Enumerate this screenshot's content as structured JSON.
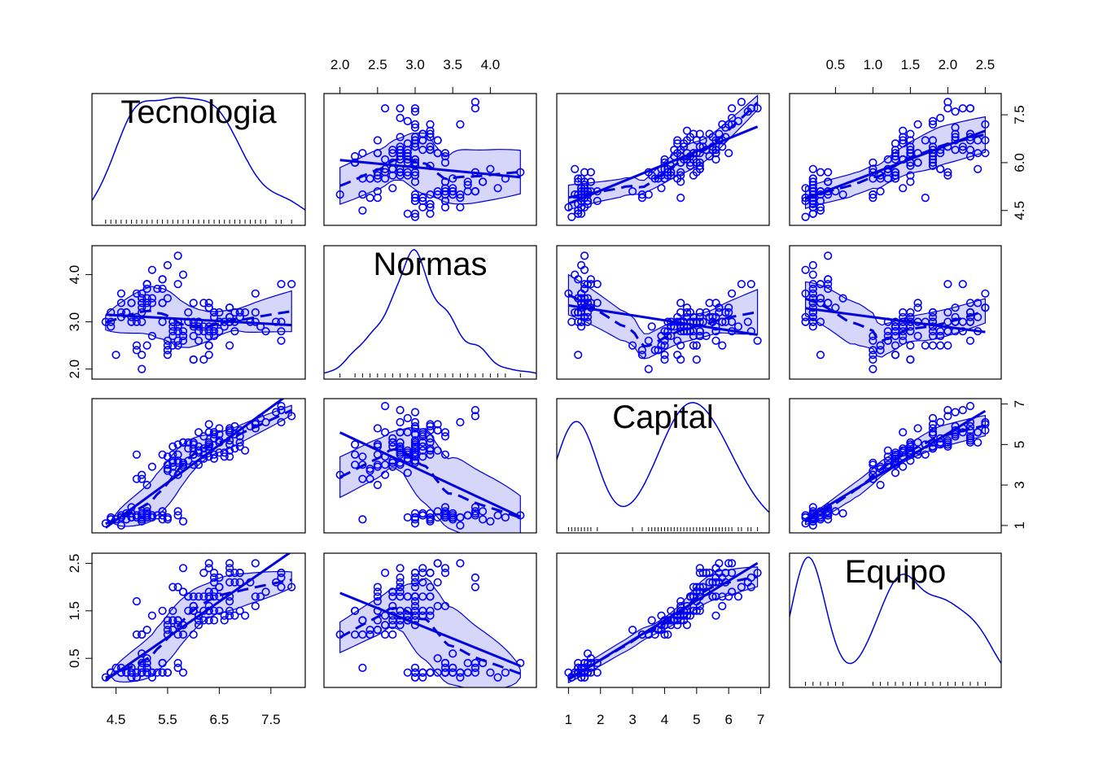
{
  "chart_data": {
    "type": "scatter",
    "variables": [
      "Tecnologia",
      "Normas",
      "Capital",
      "Equipo"
    ],
    "axis_ticks": {
      "Tecnologia": [
        "4.5",
        "5.5",
        "6.5",
        "7.5"
      ],
      "Tecnologia_right": [
        "4.5",
        "6.0",
        "7.5"
      ],
      "Normas": [
        "2.0",
        "2.5",
        "3.0",
        "3.5",
        "4.0"
      ],
      "Normas_left": [
        "2.0",
        "3.0",
        "4.0"
      ],
      "Capital": [
        "1",
        "2",
        "3",
        "4",
        "5",
        "6",
        "7"
      ],
      "Capital_right": [
        "1",
        "3",
        "5",
        "7"
      ],
      "Equipo": [
        "0.5",
        "1.0",
        "1.5",
        "2.0",
        "2.5"
      ],
      "Equipo_left": [
        "0.5",
        "1.5",
        "2.5"
      ]
    },
    "ranges": {
      "Tecnologia": [
        4.2,
        8.0
      ],
      "Normas": [
        1.9,
        4.5
      ],
      "Capital": [
        0.9,
        7.0
      ],
      "Equipo": [
        0.0,
        2.6
      ]
    },
    "colors": {
      "points": "#0000ff",
      "lines": "#0000dd",
      "band": "#d6d6fa"
    },
    "points": [
      [
        5.1,
        3.5,
        1.4,
        0.2
      ],
      [
        4.9,
        3.0,
        1.4,
        0.2
      ],
      [
        4.7,
        3.2,
        1.3,
        0.2
      ],
      [
        4.6,
        3.1,
        1.5,
        0.2
      ],
      [
        5.0,
        3.6,
        1.4,
        0.2
      ],
      [
        5.4,
        3.9,
        1.7,
        0.4
      ],
      [
        4.6,
        3.4,
        1.4,
        0.3
      ],
      [
        5.0,
        3.4,
        1.5,
        0.2
      ],
      [
        4.4,
        2.9,
        1.4,
        0.2
      ],
      [
        4.9,
        3.1,
        1.5,
        0.1
      ],
      [
        5.4,
        3.7,
        1.5,
        0.2
      ],
      [
        4.8,
        3.4,
        1.6,
        0.2
      ],
      [
        4.8,
        3.0,
        1.4,
        0.1
      ],
      [
        4.3,
        3.0,
        1.1,
        0.1
      ],
      [
        5.8,
        4.0,
        1.2,
        0.2
      ],
      [
        5.7,
        4.4,
        1.5,
        0.4
      ],
      [
        5.4,
        3.9,
        1.3,
        0.4
      ],
      [
        5.1,
        3.5,
        1.4,
        0.3
      ],
      [
        5.7,
        3.8,
        1.7,
        0.3
      ],
      [
        5.1,
        3.8,
        1.5,
        0.3
      ],
      [
        5.4,
        3.4,
        1.7,
        0.2
      ],
      [
        5.1,
        3.7,
        1.5,
        0.4
      ],
      [
        4.6,
        3.6,
        1.0,
        0.2
      ],
      [
        5.1,
        3.3,
        1.7,
        0.5
      ],
      [
        4.8,
        3.4,
        1.9,
        0.2
      ],
      [
        5.0,
        3.0,
        1.6,
        0.2
      ],
      [
        5.0,
        3.4,
        1.6,
        0.4
      ],
      [
        5.2,
        3.5,
        1.5,
        0.2
      ],
      [
        5.2,
        3.4,
        1.4,
        0.2
      ],
      [
        4.7,
        3.2,
        1.6,
        0.2
      ],
      [
        4.8,
        3.1,
        1.6,
        0.2
      ],
      [
        5.4,
        3.4,
        1.5,
        0.4
      ],
      [
        5.2,
        4.1,
        1.5,
        0.1
      ],
      [
        5.5,
        4.2,
        1.4,
        0.2
      ],
      [
        4.9,
        3.1,
        1.5,
        0.2
      ],
      [
        5.0,
        3.2,
        1.2,
        0.2
      ],
      [
        5.5,
        3.5,
        1.3,
        0.2
      ],
      [
        4.9,
        3.6,
        1.4,
        0.1
      ],
      [
        4.4,
        3.0,
        1.3,
        0.2
      ],
      [
        5.1,
        3.4,
        1.5,
        0.2
      ],
      [
        5.0,
        3.5,
        1.3,
        0.3
      ],
      [
        4.5,
        2.3,
        1.3,
        0.3
      ],
      [
        4.4,
        3.2,
        1.3,
        0.2
      ],
      [
        5.0,
        3.5,
        1.6,
        0.6
      ],
      [
        5.1,
        3.8,
        1.9,
        0.4
      ],
      [
        4.8,
        3.0,
        1.4,
        0.3
      ],
      [
        5.1,
        3.8,
        1.6,
        0.2
      ],
      [
        4.6,
        3.2,
        1.4,
        0.2
      ],
      [
        5.3,
        3.7,
        1.5,
        0.2
      ],
      [
        5.0,
        3.3,
        1.4,
        0.2
      ],
      [
        7.0,
        3.2,
        4.7,
        1.4
      ],
      [
        6.4,
        3.2,
        4.5,
        1.5
      ],
      [
        6.9,
        3.1,
        4.9,
        1.5
      ],
      [
        5.5,
        2.3,
        4.0,
        1.3
      ],
      [
        6.5,
        2.8,
        4.6,
        1.5
      ],
      [
        5.7,
        2.8,
        4.5,
        1.3
      ],
      [
        6.3,
        3.3,
        4.7,
        1.6
      ],
      [
        4.9,
        2.4,
        3.3,
        1.0
      ],
      [
        6.6,
        2.9,
        4.6,
        1.3
      ],
      [
        5.2,
        2.7,
        3.9,
        1.4
      ],
      [
        5.0,
        2.0,
        3.5,
        1.0
      ],
      [
        5.9,
        3.0,
        4.2,
        1.5
      ],
      [
        6.0,
        2.2,
        4.0,
        1.0
      ],
      [
        6.1,
        2.9,
        4.7,
        1.4
      ],
      [
        5.6,
        2.9,
        3.6,
        1.3
      ],
      [
        6.7,
        3.1,
        4.4,
        1.4
      ],
      [
        5.6,
        3.0,
        4.5,
        1.5
      ],
      [
        5.8,
        2.7,
        4.1,
        1.0
      ],
      [
        6.2,
        2.2,
        4.5,
        1.5
      ],
      [
        5.6,
        2.5,
        3.9,
        1.1
      ],
      [
        5.9,
        3.2,
        4.8,
        1.8
      ],
      [
        6.1,
        2.8,
        4.0,
        1.3
      ],
      [
        6.3,
        2.5,
        4.9,
        1.5
      ],
      [
        6.1,
        2.8,
        4.7,
        1.2
      ],
      [
        6.4,
        2.9,
        4.3,
        1.3
      ],
      [
        6.6,
        3.0,
        4.4,
        1.4
      ],
      [
        6.8,
        2.8,
        4.8,
        1.4
      ],
      [
        6.7,
        3.0,
        5.0,
        1.7
      ],
      [
        6.0,
        2.9,
        4.5,
        1.5
      ],
      [
        5.7,
        2.6,
        3.5,
        1.0
      ],
      [
        5.5,
        2.4,
        3.8,
        1.1
      ],
      [
        5.5,
        2.4,
        3.7,
        1.0
      ],
      [
        5.8,
        2.7,
        3.9,
        1.2
      ],
      [
        6.0,
        2.7,
        5.1,
        1.6
      ],
      [
        5.4,
        3.0,
        4.5,
        1.5
      ],
      [
        6.0,
        3.4,
        4.5,
        1.6
      ],
      [
        6.7,
        3.1,
        4.7,
        1.5
      ],
      [
        6.3,
        2.3,
        4.4,
        1.3
      ],
      [
        5.6,
        3.0,
        4.1,
        1.3
      ],
      [
        5.5,
        2.5,
        4.0,
        1.3
      ],
      [
        5.5,
        2.6,
        4.4,
        1.2
      ],
      [
        6.1,
        3.0,
        4.6,
        1.4
      ],
      [
        5.8,
        2.6,
        4.0,
        1.2
      ],
      [
        5.0,
        2.3,
        3.3,
        1.0
      ],
      [
        5.6,
        2.7,
        4.2,
        1.3
      ],
      [
        5.7,
        3.0,
        4.2,
        1.2
      ],
      [
        5.7,
        2.9,
        4.2,
        1.3
      ],
      [
        6.2,
        2.9,
        4.3,
        1.3
      ],
      [
        5.1,
        2.5,
        3.0,
        1.1
      ],
      [
        5.7,
        2.8,
        4.1,
        1.3
      ],
      [
        6.3,
        3.3,
        6.0,
        2.5
      ],
      [
        5.8,
        2.7,
        5.1,
        1.9
      ],
      [
        7.1,
        3.0,
        5.9,
        2.1
      ],
      [
        6.3,
        2.9,
        5.6,
        1.8
      ],
      [
        6.5,
        3.0,
        5.8,
        2.2
      ],
      [
        7.6,
        3.0,
        6.6,
        2.1
      ],
      [
        4.9,
        2.5,
        4.5,
        1.7
      ],
      [
        7.3,
        2.9,
        6.3,
        1.8
      ],
      [
        6.7,
        2.5,
        5.8,
        1.8
      ],
      [
        7.2,
        3.6,
        6.1,
        2.5
      ],
      [
        6.5,
        3.2,
        5.1,
        2.0
      ],
      [
        6.4,
        2.7,
        5.3,
        1.9
      ],
      [
        6.8,
        3.0,
        5.5,
        2.1
      ],
      [
        5.7,
        2.5,
        5.0,
        2.0
      ],
      [
        5.8,
        2.8,
        5.1,
        2.4
      ],
      [
        6.4,
        3.2,
        5.3,
        2.3
      ],
      [
        6.5,
        3.0,
        5.5,
        1.8
      ],
      [
        7.7,
        3.8,
        6.7,
        2.2
      ],
      [
        7.7,
        2.6,
        6.9,
        2.3
      ],
      [
        6.0,
        2.2,
        5.0,
        1.5
      ],
      [
        6.9,
        3.2,
        5.7,
        2.3
      ],
      [
        5.6,
        2.8,
        4.9,
        2.0
      ],
      [
        7.7,
        2.8,
        6.7,
        2.0
      ],
      [
        6.3,
        2.7,
        4.9,
        1.8
      ],
      [
        6.7,
        3.3,
        5.7,
        2.1
      ],
      [
        7.2,
        3.2,
        6.0,
        1.8
      ],
      [
        6.2,
        2.8,
        4.8,
        1.8
      ],
      [
        6.1,
        3.0,
        4.9,
        1.8
      ],
      [
        6.4,
        2.8,
        5.6,
        2.1
      ],
      [
        7.2,
        3.0,
        5.8,
        1.6
      ],
      [
        7.4,
        2.8,
        6.1,
        1.9
      ],
      [
        7.9,
        3.8,
        6.4,
        2.0
      ],
      [
        6.4,
        2.8,
        5.6,
        2.2
      ],
      [
        6.3,
        2.8,
        5.1,
        1.5
      ],
      [
        6.1,
        2.6,
        5.6,
        1.4
      ],
      [
        7.7,
        3.0,
        6.1,
        2.3
      ],
      [
        6.3,
        3.4,
        5.6,
        2.4
      ],
      [
        6.4,
        3.1,
        5.5,
        1.8
      ],
      [
        6.0,
        3.0,
        4.8,
        1.8
      ],
      [
        6.9,
        3.1,
        5.4,
        2.1
      ],
      [
        6.7,
        3.1,
        5.6,
        2.4
      ],
      [
        6.9,
        3.1,
        5.1,
        2.3
      ],
      [
        5.8,
        2.7,
        5.1,
        1.9
      ],
      [
        6.8,
        3.2,
        5.9,
        2.3
      ],
      [
        6.7,
        3.3,
        5.7,
        2.5
      ],
      [
        6.7,
        3.0,
        5.2,
        2.3
      ],
      [
        6.3,
        2.5,
        5.0,
        1.9
      ],
      [
        6.5,
        3.0,
        5.2,
        2.0
      ],
      [
        6.2,
        3.4,
        5.4,
        2.3
      ],
      [
        5.9,
        3.0,
        5.1,
        1.8
      ]
    ]
  }
}
